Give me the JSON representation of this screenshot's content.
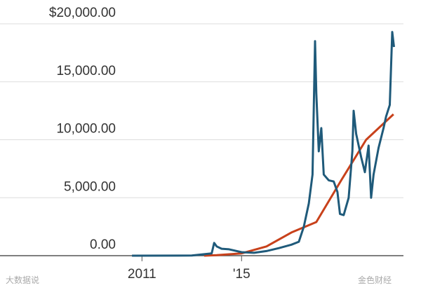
{
  "chart_data": {
    "type": "line",
    "xlim": [
      2005.3,
      2021.5
    ],
    "xticks": [
      2011,
      {
        "value": 2015,
        "label": "'15"
      }
    ],
    "ylim": [
      0,
      20000
    ],
    "yticks": [
      {
        "value": 0,
        "label": "0.00"
      },
      {
        "value": 5000,
        "label": "5,000.00"
      },
      {
        "value": 10000,
        "label": "10,000.00"
      },
      {
        "value": 15000,
        "label": "15,000.00"
      },
      {
        "value": 20000,
        "label": "$20,000.00"
      }
    ],
    "grid": true,
    "annotations": [
      "大数据说",
      "金色财经"
    ],
    "series": [
      {
        "color": "#1f5a7a",
        "x": [
          2010.6,
          2013.0,
          2013.8,
          2013.9,
          2014.0,
          2014.2,
          2014.5,
          2015.0,
          2015.5,
          2016.0,
          2016.5,
          2017.0,
          2017.3,
          2017.5,
          2017.7,
          2017.85,
          2017.95,
          2018.0,
          2018.1,
          2018.2,
          2018.3,
          2018.5,
          2018.7,
          2018.85,
          2018.95,
          2019.1,
          2019.3,
          2019.45,
          2019.5,
          2019.6,
          2019.8,
          2019.95,
          2020.1,
          2020.2,
          2020.3,
          2020.5,
          2020.7,
          2020.8,
          2020.95,
          2021.05,
          2021.12
        ],
        "values": [
          0,
          10,
          200,
          1100,
          800,
          600,
          550,
          300,
          250,
          400,
          650,
          950,
          1200,
          2500,
          4500,
          7000,
          18500,
          14000,
          9000,
          11000,
          7000,
          6500,
          6400,
          5500,
          3600,
          3500,
          5000,
          9000,
          12500,
          10500,
          8500,
          7200,
          9500,
          5000,
          7000,
          9300,
          11000,
          12000,
          13000,
          19300,
          18000
        ]
      },
      {
        "color": "#c8411b",
        "x": [
          2013.5,
          2014.0,
          2015.0,
          2016.0,
          2017.0,
          2018.0,
          2019.0,
          2020.0,
          2021.1
        ],
        "values": [
          0,
          50,
          200,
          800,
          2000,
          2900,
          6500,
          10000,
          12200
        ]
      }
    ]
  }
}
